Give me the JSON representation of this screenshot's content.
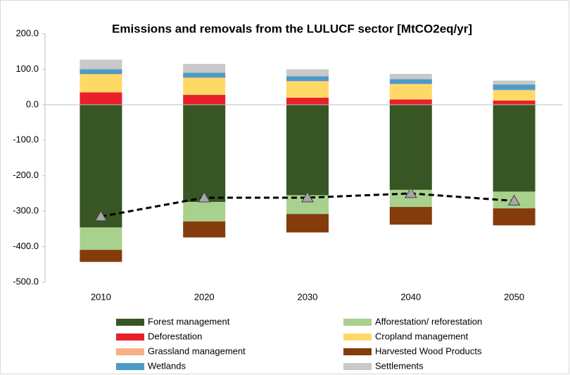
{
  "chart_data": {
    "type": "stacked-bar",
    "title": "Emissions and removals from the LULUCF sector [MtCO2eq/yr]",
    "categories": [
      "2010",
      "2020",
      "2030",
      "2040",
      "2050"
    ],
    "series": [
      {
        "name": "Forest management",
        "color": "#375623",
        "values": [
          -346,
          -274,
          -255,
          -240,
          -245
        ]
      },
      {
        "name": "Afforestation/ reforestation",
        "color": "#a9d18e",
        "values": [
          -63,
          -55,
          -53,
          -48,
          -47
        ]
      },
      {
        "name": "Deforestation",
        "color": "#e8202a",
        "values": [
          35,
          28,
          20,
          15,
          12
        ]
      },
      {
        "name": "Cropland management",
        "color": "#ffd966",
        "values": [
          50,
          47,
          45,
          42,
          28
        ]
      },
      {
        "name": "Grassland management",
        "color": "#f4b183",
        "values": [
          2,
          2,
          2,
          2,
          2
        ]
      },
      {
        "name": "Harvested Wood Products",
        "color": "#843c0c",
        "values": [
          -34,
          -45,
          -52,
          -50,
          -48
        ]
      },
      {
        "name": "Wetlands",
        "color": "#4a9cc6",
        "values": [
          13,
          13,
          13,
          13,
          15
        ]
      },
      {
        "name": "Settlements",
        "color": "#c9c9c9",
        "values": [
          27,
          25,
          20,
          15,
          11
        ]
      }
    ],
    "net": {
      "color": "#000000",
      "marker_color": "#a6a6a6",
      "values": [
        -315,
        -262,
        -262,
        -250,
        -271
      ]
    },
    "ylim": [
      -500,
      200
    ],
    "yticks": [
      {
        "value": -500,
        "label": "-500.0"
      },
      {
        "value": -400,
        "label": "-400.0"
      },
      {
        "value": -300,
        "label": "-300.0"
      },
      {
        "value": -200,
        "label": "-200.0"
      },
      {
        "value": -100,
        "label": "-100.0"
      },
      {
        "value": 0,
        "label": "0.0"
      },
      {
        "value": 100,
        "label": "100.0"
      },
      {
        "value": 200,
        "label": "200.0"
      }
    ],
    "grid": false,
    "legend": "bottom"
  }
}
